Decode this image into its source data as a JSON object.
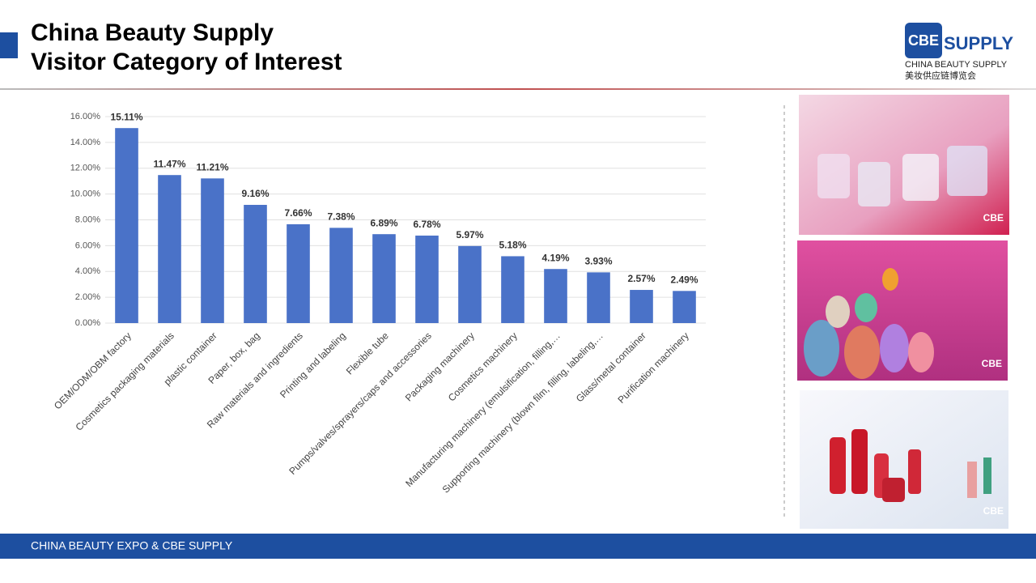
{
  "header": {
    "title_line1": "China Beauty Supply",
    "title_line2": "Visitor Category of Interest"
  },
  "logo": {
    "mark": "CBE",
    "word": "SUPPLY",
    "subtitle": "CHINA BEAUTY SUPPLY",
    "chinese": "美妆供应链博览会"
  },
  "photos": {
    "watermark": "CBE"
  },
  "footer": {
    "text": "CHINA BEAUTY EXPO & CBE SUPPLY"
  },
  "chart_data": {
    "type": "bar",
    "categories": [
      "OEM/ODM/OBM factory",
      "Cosmetics packaging materials",
      "plastic container",
      "Paper, box, bag",
      "Raw materials and ingredients",
      "Printing and labeling",
      "Flexible tube",
      "Pumps/valves/sprayers/caps and accessories",
      "Packaging machinery",
      "Cosmetics machinery",
      "Manufacturing machinery (emulsification, filling,…",
      "Supporting machinery (blown film, filling, labeling,…",
      "Glass/metal container",
      "Purification machinery"
    ],
    "values": [
      15.11,
      11.47,
      11.21,
      9.16,
      7.66,
      7.38,
      6.89,
      6.78,
      5.97,
      5.18,
      4.19,
      3.93,
      2.57,
      2.49
    ],
    "value_labels": [
      "15.11%",
      "11.47%",
      "11.21%",
      "9.16%",
      "7.66%",
      "7.38%",
      "6.89%",
      "6.78%",
      "5.97%",
      "5.18%",
      "4.19%",
      "3.93%",
      "2.57%",
      "2.49%"
    ],
    "color": "#4a72c8",
    "ylim": [
      0,
      16
    ],
    "yticks": [
      {
        "value": 0,
        "label": "0.00%"
      },
      {
        "value": 2,
        "label": "2.00%"
      },
      {
        "value": 4,
        "label": "4.00%"
      },
      {
        "value": 6,
        "label": "6.00%"
      },
      {
        "value": 8,
        "label": "8.00%"
      },
      {
        "value": 10,
        "label": "10.00%"
      },
      {
        "value": 12,
        "label": "12.00%"
      },
      {
        "value": 14,
        "label": "14.00%"
      },
      {
        "value": 16,
        "label": "16.00%"
      }
    ],
    "grid": true
  }
}
